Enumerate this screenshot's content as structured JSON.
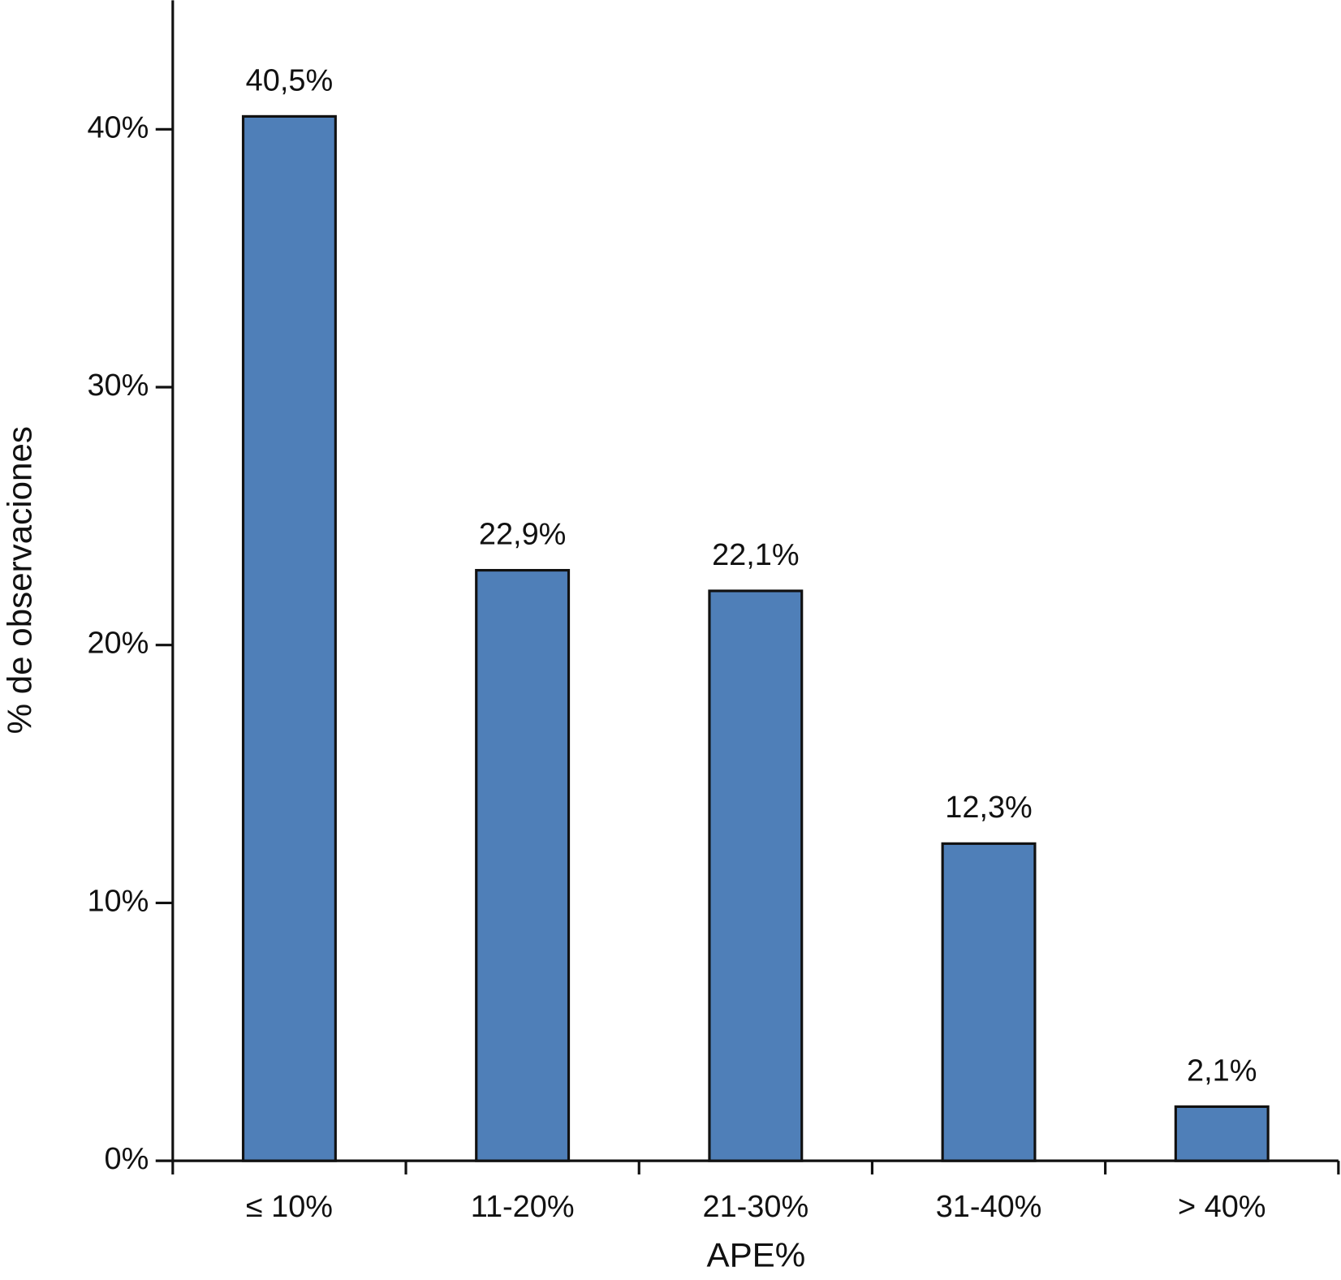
{
  "chart_data": {
    "type": "bar",
    "x_label": "APE%",
    "y_label": "% de observaciones",
    "categories": [
      "≤ 10%",
      "11-20%",
      "21-30%",
      "31-40%",
      "> 40%"
    ],
    "values": [
      40.5,
      22.9,
      22.1,
      12.3,
      2.1
    ],
    "value_labels": [
      "40,5%",
      "22,9%",
      "22,1%",
      "12,3%",
      "2,1%"
    ],
    "color": "#4f7fb8",
    "ylim": [
      0,
      45
    ],
    "yticks": [
      {
        "value": 0,
        "label": "0%"
      },
      {
        "value": 10,
        "label": "10%"
      },
      {
        "value": 20,
        "label": "20%"
      },
      {
        "value": 30,
        "label": "30%"
      },
      {
        "value": 40,
        "label": "40%"
      }
    ],
    "grid": false
  }
}
